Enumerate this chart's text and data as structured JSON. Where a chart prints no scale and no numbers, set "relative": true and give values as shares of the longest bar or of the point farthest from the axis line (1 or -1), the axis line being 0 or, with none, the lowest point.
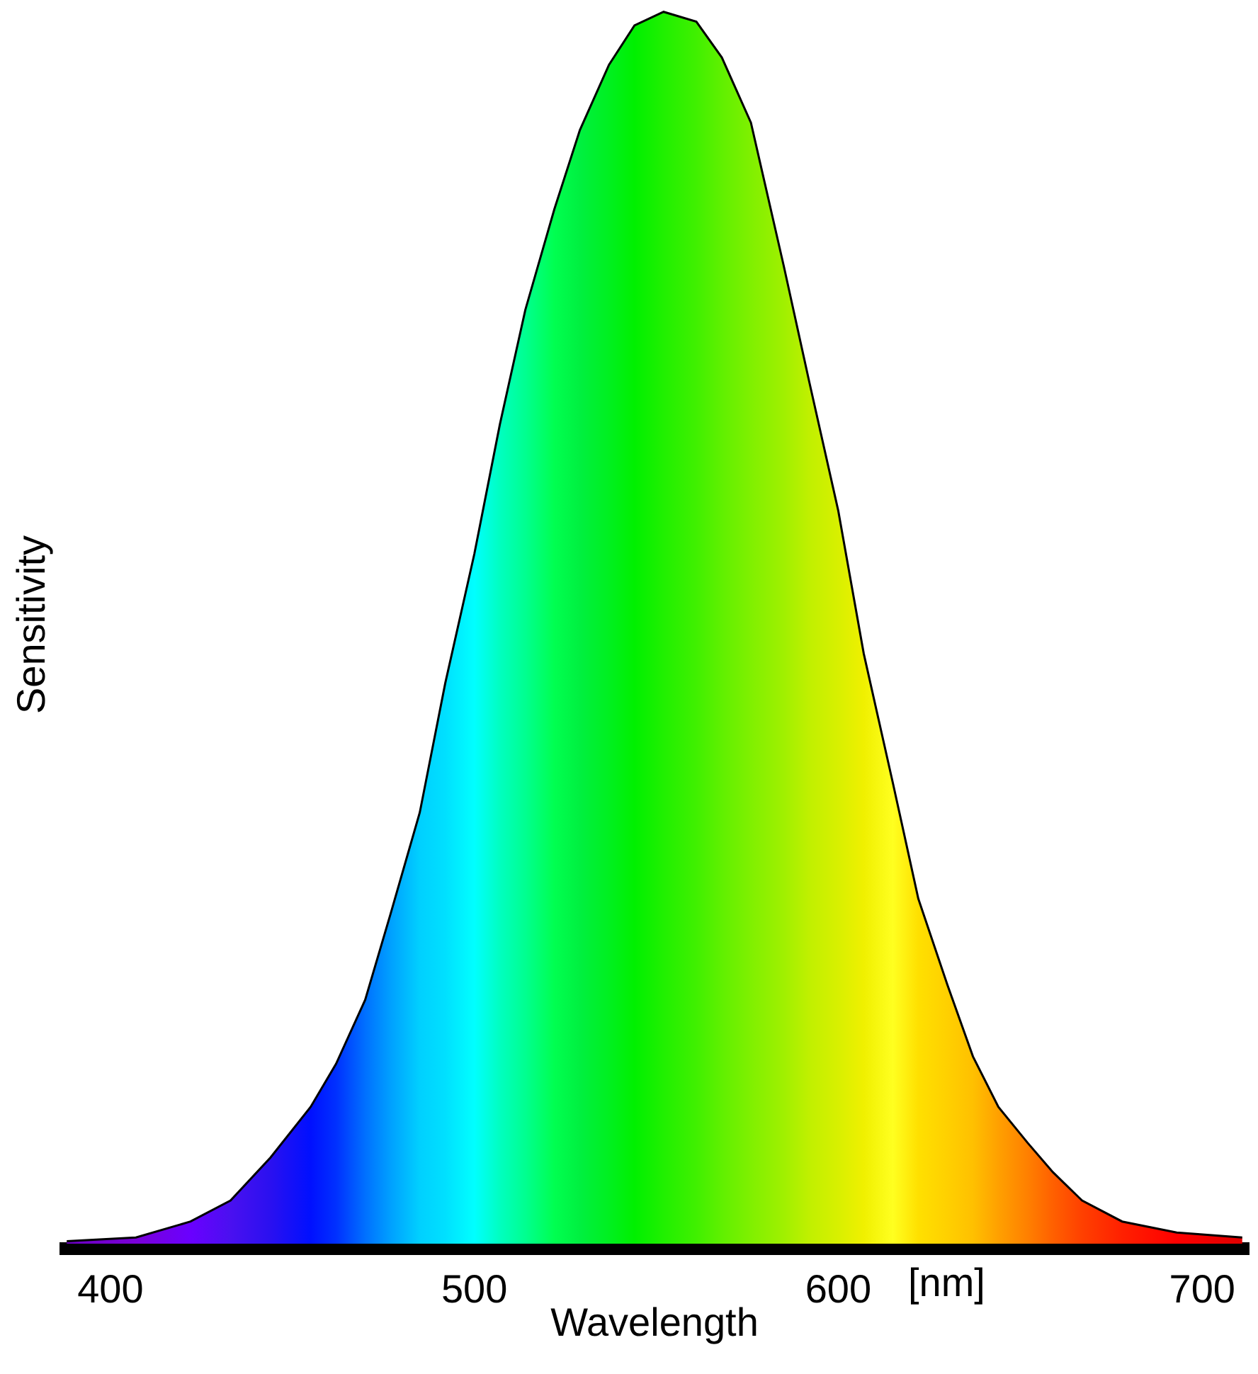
{
  "chart_data": {
    "type": "area",
    "relative": true,
    "xlabel": "Wavelength",
    "ylabel": "Sensitivity",
    "x": [
      388,
      407,
      422,
      433,
      444,
      455,
      462,
      470,
      477,
      485,
      492,
      500,
      507,
      514,
      522,
      529,
      537,
      544,
      552,
      561,
      568,
      576,
      585,
      592,
      600,
      607,
      615,
      622,
      630,
      637,
      644,
      652,
      659,
      667,
      678,
      693,
      711
    ],
    "xlim": [
      386,
      713
    ],
    "xticks": [
      400,
      500,
      600,
      700
    ],
    "series": [
      {
        "values": [
          0.002,
          0.005,
          0.018,
          0.035,
          0.07,
          0.111,
          0.146,
          0.198,
          0.268,
          0.35,
          0.455,
          0.56,
          0.665,
          0.758,
          0.84,
          0.904,
          0.957,
          0.989,
          1.0,
          0.992,
          0.963,
          0.91,
          0.794,
          0.7,
          0.595,
          0.479,
          0.374,
          0.28,
          0.21,
          0.152,
          0.111,
          0.082,
          0.058,
          0.035,
          0.018,
          0.009,
          0.005
        ],
        "colors": [
          "#6a00c0",
          "#7a00d8",
          "#6a00ff",
          "#4a10f0",
          "#2a10f0",
          "#0010ff",
          "#0030ff",
          "#0070ff",
          "#00a0ff",
          "#00d0ff",
          "#00e0ff",
          "#00ffff",
          "#00ffc0",
          "#00ff90",
          "#00ff50",
          "#00f040",
          "#00f020",
          "#00f000",
          "#20f000",
          "#40f000",
          "#60f000",
          "#80f000",
          "#a0f000",
          "#c0f000",
          "#d8f000",
          "#f0f000",
          "#ffff20",
          "#ffe000",
          "#ffd000",
          "#ffc000",
          "#ffa000",
          "#ff8000",
          "#ff6000",
          "#ff4000",
          "#ff2000",
          "#ff0000",
          "#e00000"
        ]
      }
    ],
    "annotations": [
      "[nm]"
    ]
  }
}
